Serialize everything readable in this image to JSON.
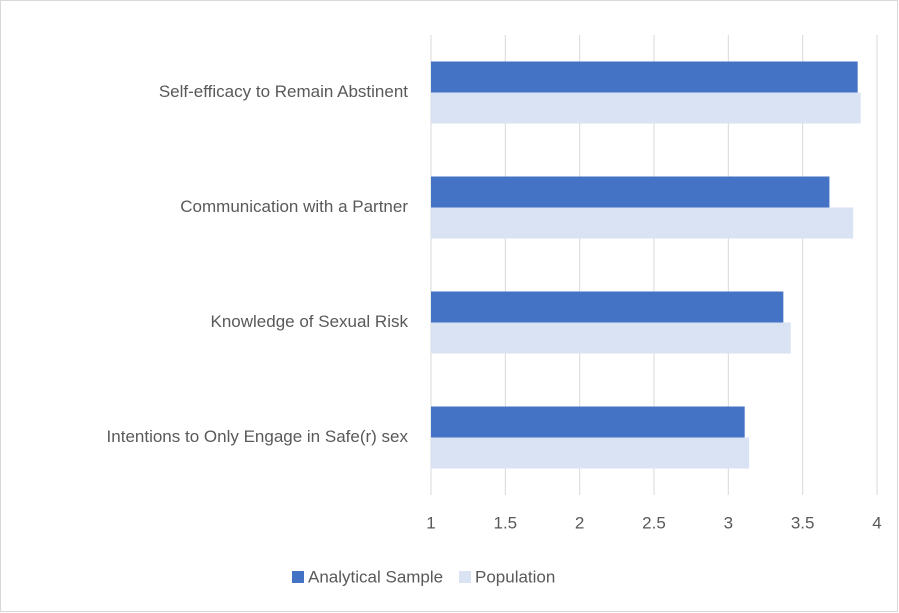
{
  "chart_data": {
    "type": "hbar",
    "categories": [
      "Self-efficacy to Remain Abstinent",
      "Communication with a Partner",
      "Knowledge of Sexual Risk",
      "Intentions to Only Engage in Safe(r) sex"
    ],
    "series": [
      {
        "name": "Analytical Sample",
        "color": "#4472c4",
        "values": [
          3.87,
          3.68,
          3.37,
          3.11
        ]
      },
      {
        "name": "Population",
        "color": "#dae3f3",
        "values": [
          3.89,
          3.84,
          3.42,
          3.14
        ]
      }
    ],
    "xlim": [
      1,
      4
    ],
    "xticks": [
      1,
      1.5,
      2,
      2.5,
      3,
      3.5,
      4
    ],
    "grid": true,
    "legend": "bottom"
  }
}
